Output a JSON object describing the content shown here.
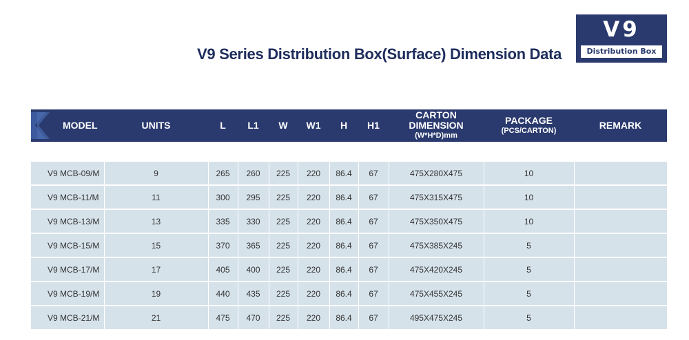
{
  "title": "V9 Series Distribution Box(Surface) Dimension Data",
  "badge": {
    "main": "V9",
    "sub": "Distribution Box"
  },
  "colors": {
    "header_bg": "#2a3a6e",
    "row_bg": "#d6e2ea",
    "title": "#1e2d5c"
  },
  "table": {
    "headers": {
      "model": "MODEL",
      "units": "UNITS",
      "l": "L",
      "l1": "L1",
      "w": "W",
      "w1": "W1",
      "h": "H",
      "h1": "H1",
      "carton": "CARTON DIMENSION",
      "carton_sub": "(W*H*D)mm",
      "package": "PACKAGE",
      "package_sub": "(PCS/CARTON)",
      "remark": "REMARK"
    },
    "rows": [
      {
        "model": "V9 MCB-09/M",
        "units": "9",
        "l": "265",
        "l1": "260",
        "w": "225",
        "w1": "220",
        "h": "86.4",
        "h1": "67",
        "carton": "475X280X475",
        "package": "10",
        "remark": ""
      },
      {
        "model": "V9 MCB-11/M",
        "units": "11",
        "l": "300",
        "l1": "295",
        "w": "225",
        "w1": "220",
        "h": "86.4",
        "h1": "67",
        "carton": "475X315X475",
        "package": "10",
        "remark": ""
      },
      {
        "model": "V9 MCB-13/M",
        "units": "13",
        "l": "335",
        "l1": "330",
        "w": "225",
        "w1": "220",
        "h": "86.4",
        "h1": "67",
        "carton": "475X350X475",
        "package": "10",
        "remark": ""
      },
      {
        "model": "V9 MCB-15/M",
        "units": "15",
        "l": "370",
        "l1": "365",
        "w": "225",
        "w1": "220",
        "h": "86.4",
        "h1": "67",
        "carton": "475X385X245",
        "package": "5",
        "remark": ""
      },
      {
        "model": "V9 MCB-17/M",
        "units": "17",
        "l": "405",
        "l1": "400",
        "w": "225",
        "w1": "220",
        "h": "86.4",
        "h1": "67",
        "carton": "475X420X245",
        "package": "5",
        "remark": ""
      },
      {
        "model": "V9 MCB-19/M",
        "units": "19",
        "l": "440",
        "l1": "435",
        "w": "225",
        "w1": "220",
        "h": "86.4",
        "h1": "67",
        "carton": "475X455X245",
        "package": "5",
        "remark": ""
      },
      {
        "model": "V9 MCB-21/M",
        "units": "21",
        "l": "475",
        "l1": "470",
        "w": "225",
        "w1": "220",
        "h": "86.4",
        "h1": "67",
        "carton": "495X475X245",
        "package": "5",
        "remark": ""
      }
    ]
  }
}
